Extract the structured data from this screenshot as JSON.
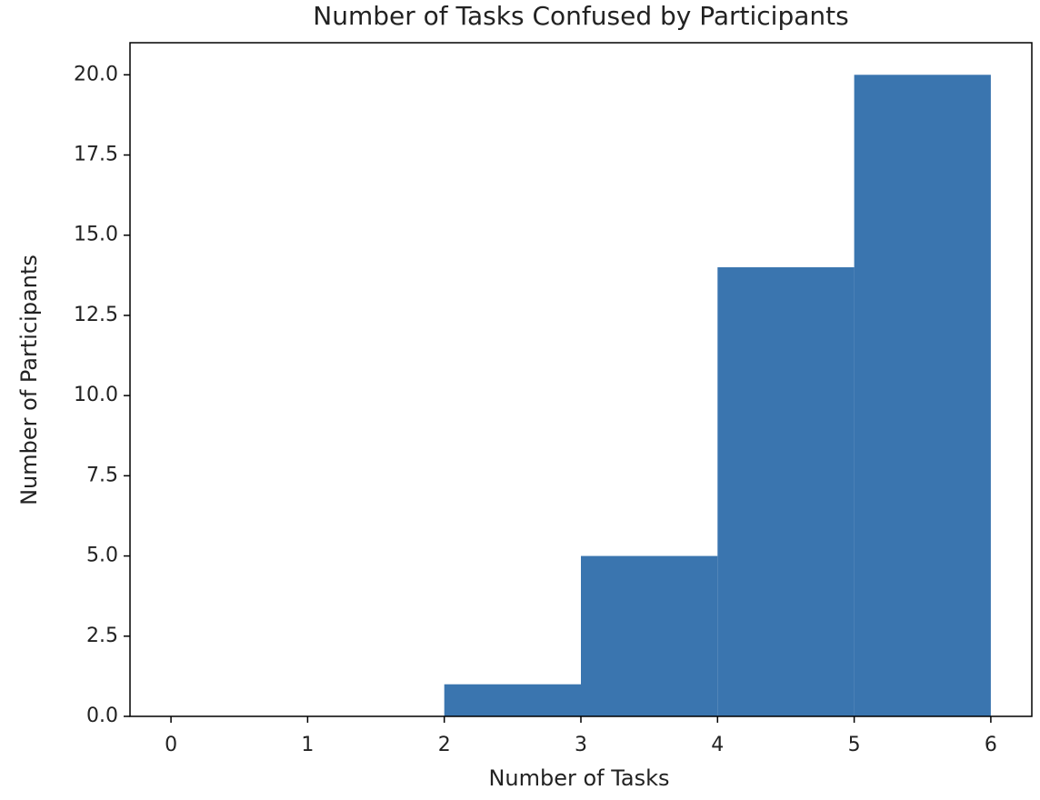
{
  "chart_data": {
    "type": "histogram",
    "title": "Number of Tasks Confused by Participants",
    "x_label": "Number of Tasks",
    "y_label": "Number of Participants",
    "bins": [
      0,
      1,
      2,
      3,
      4,
      5,
      6
    ],
    "counts": [
      0,
      0,
      1,
      5,
      14,
      20
    ],
    "color": "#3a75af",
    "xlim": [
      -0.3,
      6.3
    ],
    "xticks": [
      0,
      1,
      2,
      3,
      4,
      5,
      6
    ],
    "ylim": [
      0,
      21
    ],
    "yticks": [
      {
        "value": 0,
        "label": "0.0"
      },
      2.5,
      {
        "value": 5,
        "label": "5.0"
      },
      7.5,
      {
        "value": 10,
        "label": "10.0"
      },
      12.5,
      {
        "value": 15,
        "label": "15.0"
      },
      17.5,
      {
        "value": 20,
        "label": "20.0"
      }
    ],
    "grid": false
  }
}
